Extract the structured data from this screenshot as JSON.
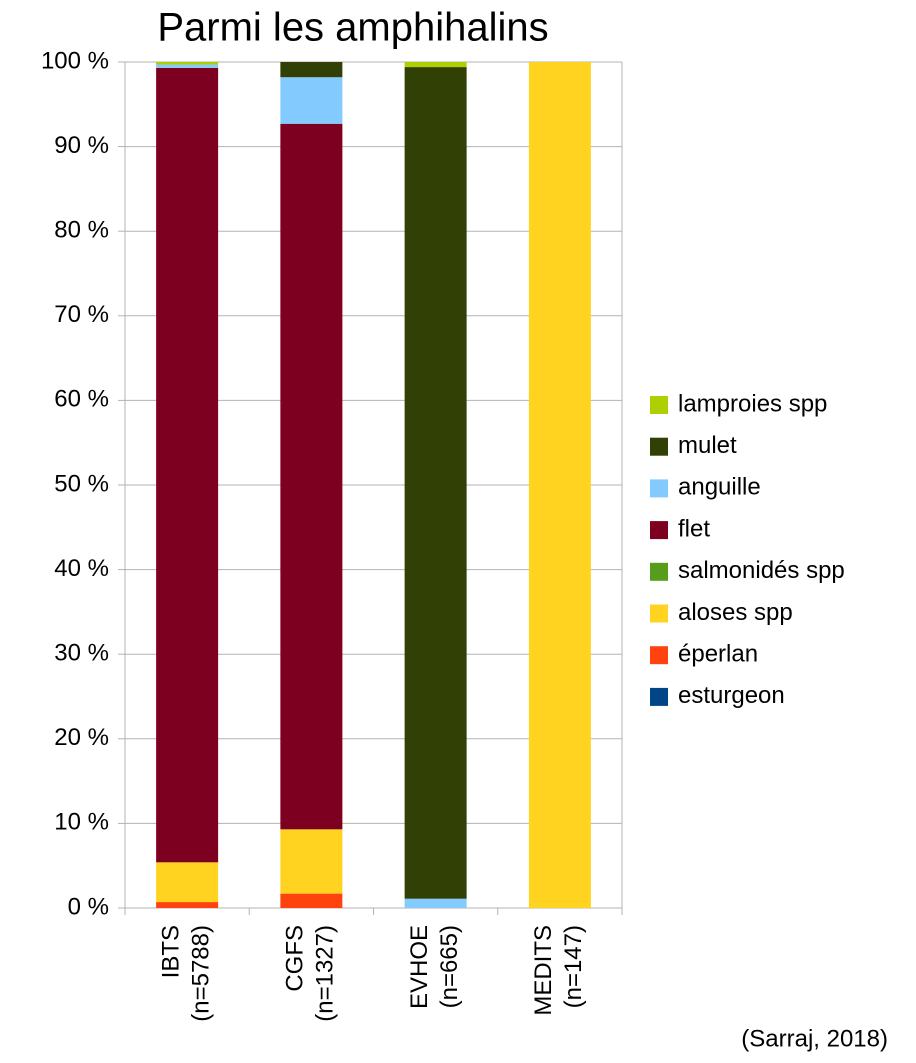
{
  "chart_data": {
    "type": "stacked_bar",
    "title": "Parmi les amphihalins",
    "annotation": "(Sarraj, 2018)",
    "categories": [
      [
        "IBTS",
        "(n=5788)"
      ],
      [
        "CGFS",
        "(n=1327)"
      ],
      [
        "EVHOE",
        "(n=665)"
      ],
      [
        "MEDITS",
        "(n=147)"
      ]
    ],
    "series": [
      {
        "name": "esturgeon",
        "color": "#004586",
        "values": [
          0,
          0,
          0,
          0
        ]
      },
      {
        "name": "éperlan",
        "color": "#ff420e",
        "values": [
          0.7,
          1.7,
          0,
          0
        ]
      },
      {
        "name": "aloses spp",
        "color": "#ffd320",
        "values": [
          4.7,
          7.6,
          0,
          100
        ]
      },
      {
        "name": "salmonidés spp",
        "color": "#579d1c",
        "values": [
          0,
          0,
          0,
          0
        ]
      },
      {
        "name": "flet",
        "color": "#7e0021",
        "values": [
          93.9,
          83.4,
          0,
          0
        ]
      },
      {
        "name": "anguille",
        "color": "#83caff",
        "values": [
          0.4,
          5.5,
          1.1,
          0
        ]
      },
      {
        "name": "mulet",
        "color": "#314004",
        "values": [
          0,
          1.8,
          98.3,
          0
        ]
      },
      {
        "name": "lamproies spp",
        "color": "#aecf00",
        "values": [
          0.3,
          0,
          0.6,
          0
        ]
      }
    ],
    "ylim": [
      0,
      100
    ],
    "yticks": [
      {
        "value": 0,
        "label": "0 %"
      },
      {
        "value": 10,
        "label": "10 %"
      },
      {
        "value": 20,
        "label": "20 %"
      },
      {
        "value": 30,
        "label": "30 %"
      },
      {
        "value": 40,
        "label": "40 %"
      },
      {
        "value": 50,
        "label": "50 %"
      },
      {
        "value": 60,
        "label": "60 %"
      },
      {
        "value": 70,
        "label": "70 %"
      },
      {
        "value": 80,
        "label": "80 %"
      },
      {
        "value": 90,
        "label": "90 %"
      },
      {
        "value": 100,
        "label": "100 %"
      }
    ],
    "grid": true,
    "legend": "right"
  }
}
